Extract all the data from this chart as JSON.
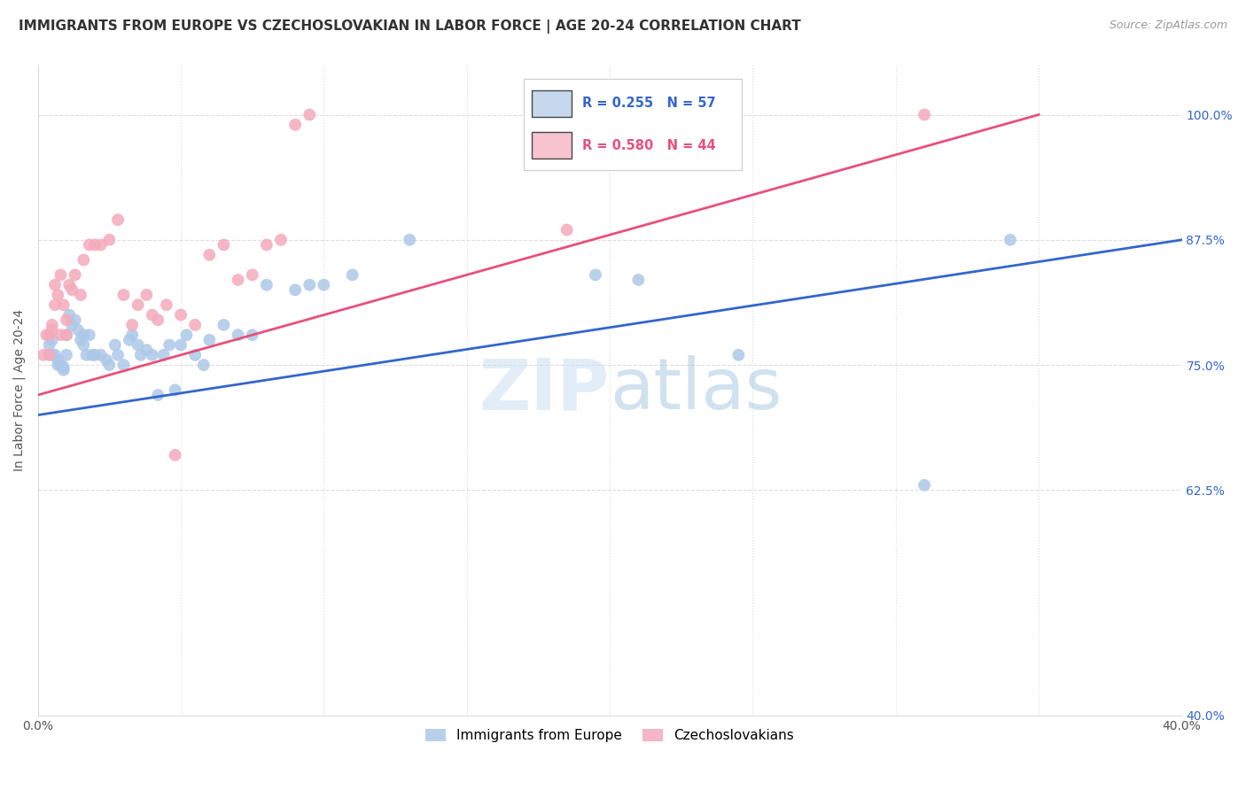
{
  "title": "IMMIGRANTS FROM EUROPE VS CZECHOSLOVAKIAN IN LABOR FORCE | AGE 20-24 CORRELATION CHART",
  "source": "Source: ZipAtlas.com",
  "ylabel": "In Labor Force | Age 20-24",
  "xlim": [
    0.0,
    0.4
  ],
  "ylim": [
    0.4,
    1.05
  ],
  "yticks": [
    0.4,
    0.625,
    0.75,
    0.875,
    1.0
  ],
  "ytick_labels": [
    "40.0%",
    "62.5%",
    "75.0%",
    "87.5%",
    "100.0%"
  ],
  "xticks": [
    0.0,
    0.05,
    0.1,
    0.15,
    0.2,
    0.25,
    0.3,
    0.35,
    0.4
  ],
  "xtick_labels": [
    "0.0%",
    "",
    "",
    "",
    "",
    "",
    "",
    "",
    "40.0%"
  ],
  "blue_R": 0.255,
  "blue_N": 57,
  "pink_R": 0.58,
  "pink_N": 44,
  "blue_color": "#adc8e8",
  "pink_color": "#f4aabb",
  "blue_line_color": "#3366cc",
  "pink_line_color": "#e8507a",
  "watermark": "ZIPatlas",
  "background_color": "#ffffff",
  "grid_color": "#dddddd",
  "blue_scatter_x": [
    0.004,
    0.005,
    0.005,
    0.006,
    0.007,
    0.007,
    0.008,
    0.009,
    0.009,
    0.01,
    0.01,
    0.011,
    0.012,
    0.013,
    0.014,
    0.015,
    0.016,
    0.016,
    0.017,
    0.018,
    0.019,
    0.02,
    0.022,
    0.024,
    0.025,
    0.027,
    0.028,
    0.03,
    0.032,
    0.033,
    0.035,
    0.036,
    0.038,
    0.04,
    0.042,
    0.044,
    0.046,
    0.048,
    0.05,
    0.052,
    0.055,
    0.058,
    0.06,
    0.065,
    0.07,
    0.075,
    0.08,
    0.09,
    0.095,
    0.1,
    0.11,
    0.13,
    0.195,
    0.21,
    0.245,
    0.31,
    0.34
  ],
  "blue_scatter_y": [
    0.77,
    0.775,
    0.76,
    0.76,
    0.755,
    0.75,
    0.75,
    0.745,
    0.748,
    0.76,
    0.78,
    0.8,
    0.79,
    0.795,
    0.785,
    0.775,
    0.78,
    0.77,
    0.76,
    0.78,
    0.76,
    0.76,
    0.76,
    0.755,
    0.75,
    0.77,
    0.76,
    0.75,
    0.775,
    0.78,
    0.77,
    0.76,
    0.765,
    0.76,
    0.72,
    0.76,
    0.77,
    0.725,
    0.77,
    0.78,
    0.76,
    0.75,
    0.775,
    0.79,
    0.78,
    0.78,
    0.83,
    0.825,
    0.83,
    0.83,
    0.84,
    0.875,
    0.84,
    0.835,
    0.76,
    0.63,
    0.875
  ],
  "pink_scatter_x": [
    0.002,
    0.003,
    0.004,
    0.004,
    0.005,
    0.005,
    0.006,
    0.006,
    0.007,
    0.008,
    0.008,
    0.009,
    0.01,
    0.01,
    0.011,
    0.012,
    0.013,
    0.015,
    0.016,
    0.018,
    0.02,
    0.022,
    0.025,
    0.028,
    0.03,
    0.033,
    0.035,
    0.038,
    0.04,
    0.042,
    0.045,
    0.048,
    0.05,
    0.055,
    0.06,
    0.065,
    0.07,
    0.075,
    0.08,
    0.085,
    0.09,
    0.095,
    0.185,
    0.31
  ],
  "pink_scatter_y": [
    0.76,
    0.78,
    0.76,
    0.78,
    0.785,
    0.79,
    0.81,
    0.83,
    0.82,
    0.84,
    0.78,
    0.81,
    0.78,
    0.795,
    0.83,
    0.825,
    0.84,
    0.82,
    0.855,
    0.87,
    0.87,
    0.87,
    0.875,
    0.895,
    0.82,
    0.79,
    0.81,
    0.82,
    0.8,
    0.795,
    0.81,
    0.66,
    0.8,
    0.79,
    0.86,
    0.87,
    0.835,
    0.84,
    0.87,
    0.875,
    0.99,
    1.0,
    0.885,
    1.0
  ],
  "blue_line_x": [
    0.0,
    0.4
  ],
  "blue_line_y": [
    0.7,
    0.875
  ],
  "pink_line_x": [
    0.0,
    0.35
  ],
  "pink_line_y": [
    0.72,
    1.0
  ]
}
